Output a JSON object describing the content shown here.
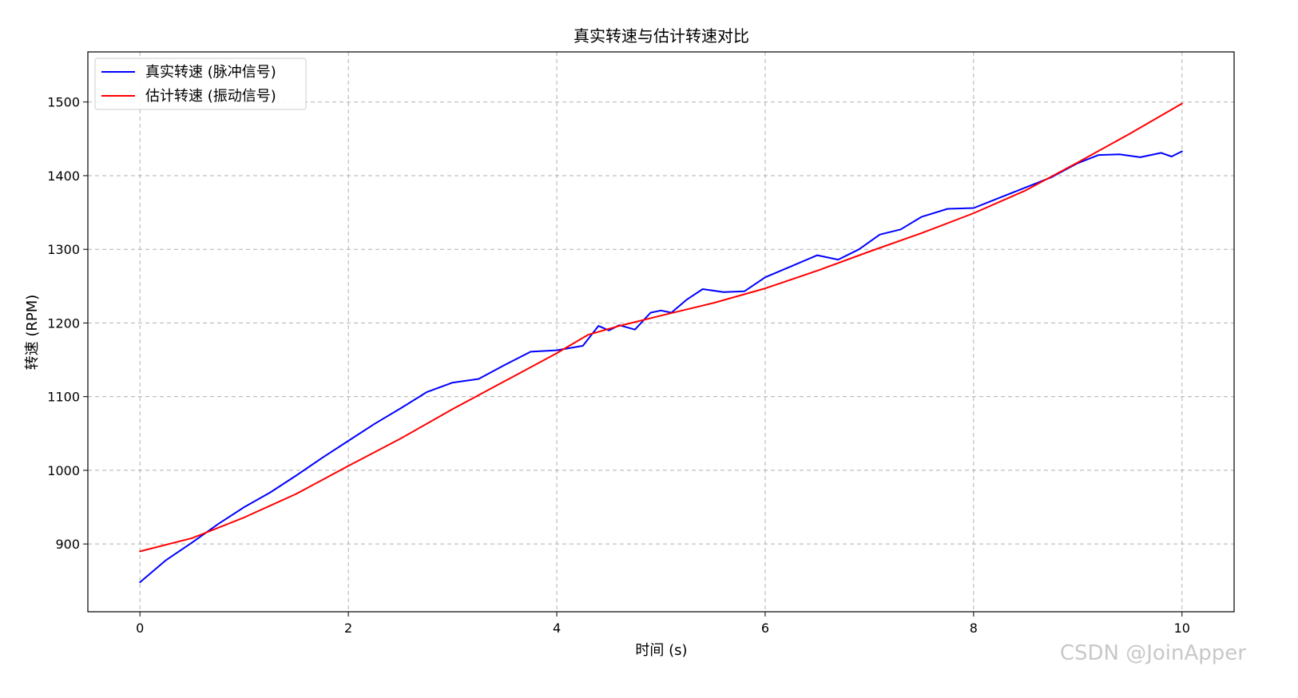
{
  "watermark": "CSDN @JoinApper",
  "chart_data": {
    "type": "line",
    "title": "真实转速与估计转速对比",
    "xlabel": "时间 (s)",
    "ylabel": "转速 (RPM)",
    "xlim": [
      -0.5,
      10.5
    ],
    "ylim": [
      808,
      1568
    ],
    "xticks": [
      0,
      2,
      4,
      6,
      8,
      10
    ],
    "yticks": [
      900,
      1000,
      1100,
      1200,
      1300,
      1400,
      1500
    ],
    "grid": true,
    "legend_position": "upper-left",
    "series": [
      {
        "name": "真实转速 (脉冲信号)",
        "color": "#0000ff",
        "x": [
          0,
          0.25,
          0.5,
          0.75,
          1.0,
          1.25,
          1.5,
          1.75,
          2.0,
          2.25,
          2.5,
          2.75,
          3.0,
          3.25,
          3.5,
          3.75,
          4.0,
          4.25,
          4.4,
          4.5,
          4.6,
          4.75,
          4.9,
          5.0,
          5.1,
          5.25,
          5.4,
          5.6,
          5.8,
          6.0,
          6.25,
          6.5,
          6.7,
          6.9,
          7.1,
          7.3,
          7.5,
          7.75,
          8.0,
          8.25,
          8.5,
          8.75,
          9.0,
          9.2,
          9.4,
          9.6,
          9.8,
          9.9,
          10.0
        ],
        "y": [
          848,
          878,
          902,
          927,
          950,
          970,
          993,
          1017,
          1040,
          1063,
          1084,
          1106,
          1119,
          1124,
          1143,
          1161,
          1163,
          1169,
          1196,
          1190,
          1197,
          1191,
          1214,
          1217,
          1214,
          1232,
          1246,
          1242,
          1243,
          1262,
          1277,
          1292,
          1286,
          1300,
          1320,
          1327,
          1344,
          1355,
          1356,
          1370,
          1384,
          1398,
          1417,
          1428,
          1429,
          1425,
          1431,
          1426,
          1433
        ]
      },
      {
        "name": "估计转速 (振动信号)",
        "color": "#ff0000",
        "x": [
          0,
          0.5,
          1.0,
          1.5,
          2.0,
          2.5,
          3.0,
          3.5,
          4.0,
          4.3,
          4.6,
          5.0,
          5.5,
          6.0,
          6.5,
          7.0,
          7.5,
          8.0,
          8.5,
          9.0,
          9.5,
          10.0
        ],
        "y": [
          890,
          908,
          936,
          968,
          1006,
          1043,
          1083,
          1121,
          1159,
          1184,
          1196,
          1210,
          1227,
          1247,
          1271,
          1297,
          1322,
          1349,
          1380,
          1418,
          1457,
          1498
        ]
      }
    ]
  }
}
